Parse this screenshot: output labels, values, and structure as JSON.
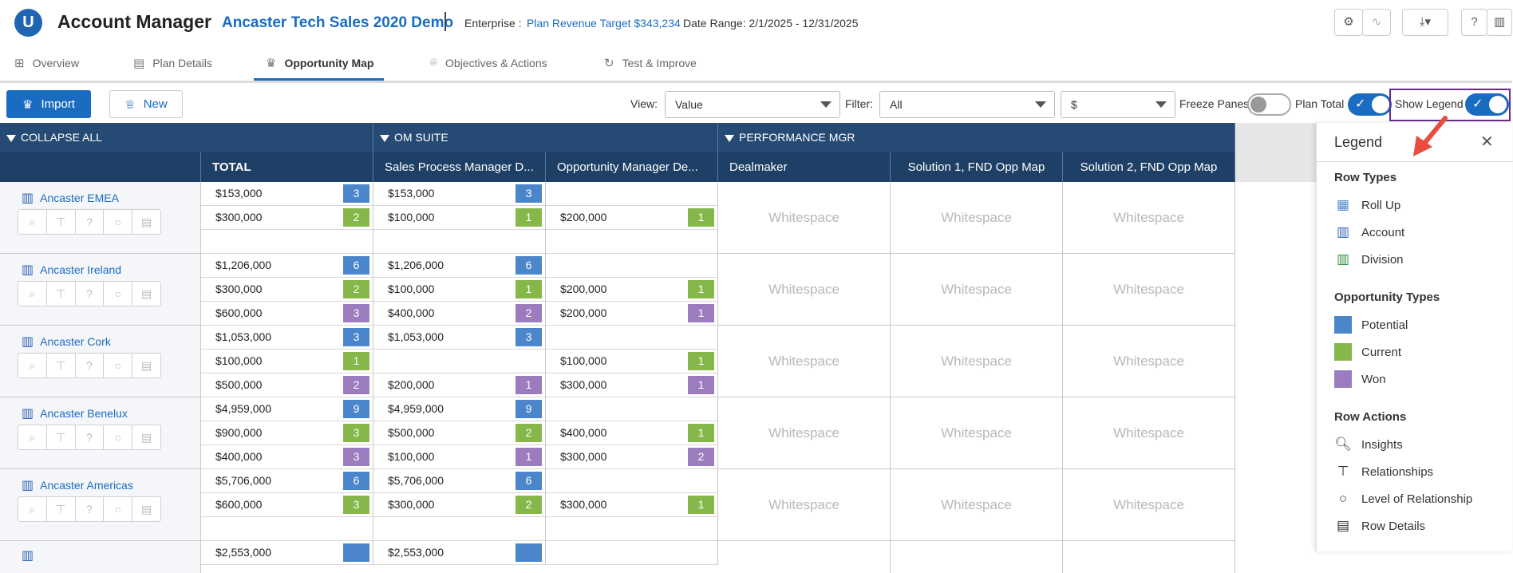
{
  "header": {
    "logo": "U",
    "app_title": "Account Manager",
    "plan_name": "Ancaster Tech Sales 2020 Demo",
    "enterprise_label": "Enterprise :",
    "plan_revenue_target": "Plan Revenue Target $343,234",
    "date_range": "Date Range: 2/1/2025 - 12/31/2025",
    "icons": [
      "gear-icon",
      "activity-icon",
      "download-icon",
      "help-icon",
      "book-icon"
    ]
  },
  "tabs": [
    {
      "label": "Overview",
      "icon": "grid-icon",
      "active": false
    },
    {
      "label": "Plan Details",
      "icon": "clipboard-icon",
      "active": false
    },
    {
      "label": "Opportunity Map",
      "icon": "crown-icon",
      "active": true
    },
    {
      "label": "Objectives & Actions",
      "icon": "target-icon",
      "active": false
    },
    {
      "label": "Test & Improve",
      "icon": "refresh-icon",
      "active": false
    }
  ],
  "toolbar": {
    "import_label": "Import",
    "new_label": "New",
    "view_label": "View:",
    "view_value": "Value",
    "filter_label": "Filter:",
    "filter_value": "All",
    "currency_value": "$",
    "freeze_panes_label": "Freeze Panes",
    "freeze_panes_on": false,
    "plan_total_label": "Plan Total",
    "plan_total_on": true,
    "show_legend_label": "Show Legend",
    "show_legend_on": true
  },
  "grid": {
    "groups": [
      "COLLAPSE ALL",
      "OM SUITE",
      "PERFORMANCE MGR"
    ],
    "columns": [
      "TOTAL",
      "Sales Process Manager D...",
      "Opportunity Manager De...",
      "Dealmaker",
      "Solution 1, FND Opp Map",
      "Solution 2, FND Opp Map"
    ],
    "whitespace_label": "Whitespace",
    "accounts": [
      {
        "name": "Ancaster EMEA",
        "rows": [
          {
            "type": "potential",
            "total": "$153,000",
            "total_n": "3",
            "spm": "$153,000",
            "spm_n": "3",
            "om": "",
            "om_n": ""
          },
          {
            "type": "current",
            "total": "$300,000",
            "total_n": "2",
            "spm": "$100,000",
            "spm_n": "1",
            "om": "$200,000",
            "om_n": "1"
          },
          {
            "type": "won",
            "total": "",
            "total_n": "",
            "spm": "",
            "spm_n": "",
            "om": "",
            "om_n": ""
          }
        ]
      },
      {
        "name": "Ancaster Ireland",
        "rows": [
          {
            "type": "potential",
            "total": "$1,206,000",
            "total_n": "6",
            "spm": "$1,206,000",
            "spm_n": "6",
            "om": "",
            "om_n": ""
          },
          {
            "type": "current",
            "total": "$300,000",
            "total_n": "2",
            "spm": "$100,000",
            "spm_n": "1",
            "om": "$200,000",
            "om_n": "1"
          },
          {
            "type": "won",
            "total": "$600,000",
            "total_n": "3",
            "spm": "$400,000",
            "spm_n": "2",
            "om": "$200,000",
            "om_n": "1"
          }
        ]
      },
      {
        "name": "Ancaster Cork",
        "rows": [
          {
            "type": "potential",
            "total": "$1,053,000",
            "total_n": "3",
            "spm": "$1,053,000",
            "spm_n": "3",
            "om": "",
            "om_n": ""
          },
          {
            "type": "current",
            "total": "$100,000",
            "total_n": "1",
            "spm": "",
            "spm_n": "",
            "om": "$100,000",
            "om_n": "1"
          },
          {
            "type": "won",
            "total": "$500,000",
            "total_n": "2",
            "spm": "$200,000",
            "spm_n": "1",
            "om": "$300,000",
            "om_n": "1"
          }
        ]
      },
      {
        "name": "Ancaster Benelux",
        "rows": [
          {
            "type": "potential",
            "total": "$4,959,000",
            "total_n": "9",
            "spm": "$4,959,000",
            "spm_n": "9",
            "om": "",
            "om_n": ""
          },
          {
            "type": "current",
            "total": "$900,000",
            "total_n": "3",
            "spm": "$500,000",
            "spm_n": "2",
            "om": "$400,000",
            "om_n": "1"
          },
          {
            "type": "won",
            "total": "$400,000",
            "total_n": "3",
            "spm": "$100,000",
            "spm_n": "1",
            "om": "$300,000",
            "om_n": "2"
          }
        ]
      },
      {
        "name": "Ancaster Americas",
        "rows": [
          {
            "type": "potential",
            "total": "$5,706,000",
            "total_n": "6",
            "spm": "$5,706,000",
            "spm_n": "6",
            "om": "",
            "om_n": ""
          },
          {
            "type": "current",
            "total": "$600,000",
            "total_n": "3",
            "spm": "$300,000",
            "spm_n": "2",
            "om": "$300,000",
            "om_n": "1"
          },
          {
            "type": "won",
            "total": "",
            "total_n": "",
            "spm": "",
            "spm_n": "",
            "om": "",
            "om_n": ""
          }
        ]
      }
    ],
    "partial_row": {
      "total": "$2,553,000",
      "spm": "$2,553,000"
    }
  },
  "legend": {
    "title": "Legend",
    "sections": [
      {
        "title": "Row Types",
        "items": [
          {
            "label": "Roll Up",
            "icon": "rollup-icon"
          },
          {
            "label": "Account",
            "icon": "building-icon"
          },
          {
            "label": "Division",
            "icon": "division-icon"
          }
        ]
      },
      {
        "title": "Opportunity Types",
        "items": [
          {
            "label": "Potential",
            "color": "#4a86c9"
          },
          {
            "label": "Current",
            "color": "#86b74a"
          },
          {
            "label": "Won",
            "color": "#9a7cbf"
          }
        ]
      },
      {
        "title": "Row Actions",
        "items": [
          {
            "label": "Insights",
            "icon": "insights-icon"
          },
          {
            "label": "Relationships",
            "icon": "relationships-icon"
          },
          {
            "label": "Level of Relationship",
            "icon": "circle-icon"
          },
          {
            "label": "Row Details",
            "icon": "clipboard-icon"
          }
        ]
      }
    ]
  },
  "colors": {
    "accent": "#1a6cc0",
    "header_dark": "#1f4066",
    "potential": "#4a86c9",
    "current": "#86b74a",
    "won": "#9a7cbf",
    "highlight_box": "#6a2c8a",
    "arrow": "#e74c3c"
  }
}
